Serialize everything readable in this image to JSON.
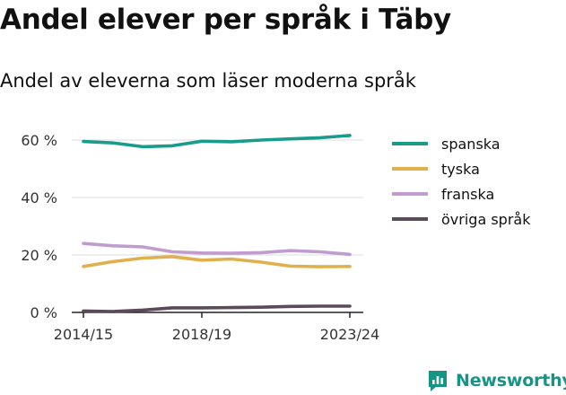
{
  "title": "Andel elever per språk i Täby",
  "subtitle": "Andel av eleverna som läser moderna språk",
  "brand": {
    "name": "Newsworthy",
    "icon": "chat-bubble-chart-icon",
    "color": "#169486"
  },
  "chart_data": {
    "type": "line",
    "title": "Andel elever per språk i Täby",
    "subtitle": "Andel av eleverna som läser moderna språk",
    "xlabel": "",
    "ylabel": "",
    "categories": [
      "2014/15",
      "2015/16",
      "2016/17",
      "2017/18",
      "2018/19",
      "2019/20",
      "2020/21",
      "2021/22",
      "2022/23",
      "2023/24"
    ],
    "x_tick_labels": [
      {
        "category": "2014/15",
        "label": "2014/15"
      },
      {
        "category": "2018/19",
        "label": "2018/19"
      },
      {
        "category": "2023/24",
        "label": "2023/24"
      }
    ],
    "ylim": [
      0,
      65
    ],
    "y_ticks": [
      0,
      20,
      40,
      60
    ],
    "y_tick_labels": [
      "0 %",
      "20 %",
      "40 %",
      "60 %"
    ],
    "grid": "horizontal",
    "legend_position": "right",
    "series": [
      {
        "name": "spanska",
        "color": "#1a9c8c",
        "values": [
          59.5,
          59.0,
          57.7,
          58.0,
          59.6,
          59.4,
          60.0,
          60.4,
          60.8,
          61.6
        ]
      },
      {
        "name": "tyska",
        "color": "#e1b04c",
        "values": [
          16.0,
          17.7,
          18.9,
          19.4,
          18.2,
          18.6,
          17.5,
          16.1,
          15.9,
          16.0
        ]
      },
      {
        "name": "franska",
        "color": "#c09ccf",
        "values": [
          24.0,
          23.2,
          22.8,
          21.1,
          20.7,
          20.6,
          20.8,
          21.5,
          21.1,
          20.2
        ]
      },
      {
        "name": "övriga språk",
        "color": "#5b4a5a",
        "values": [
          0.5,
          0.3,
          0.8,
          1.6,
          1.6,
          1.7,
          1.8,
          2.1,
          2.2,
          2.2
        ]
      }
    ]
  }
}
